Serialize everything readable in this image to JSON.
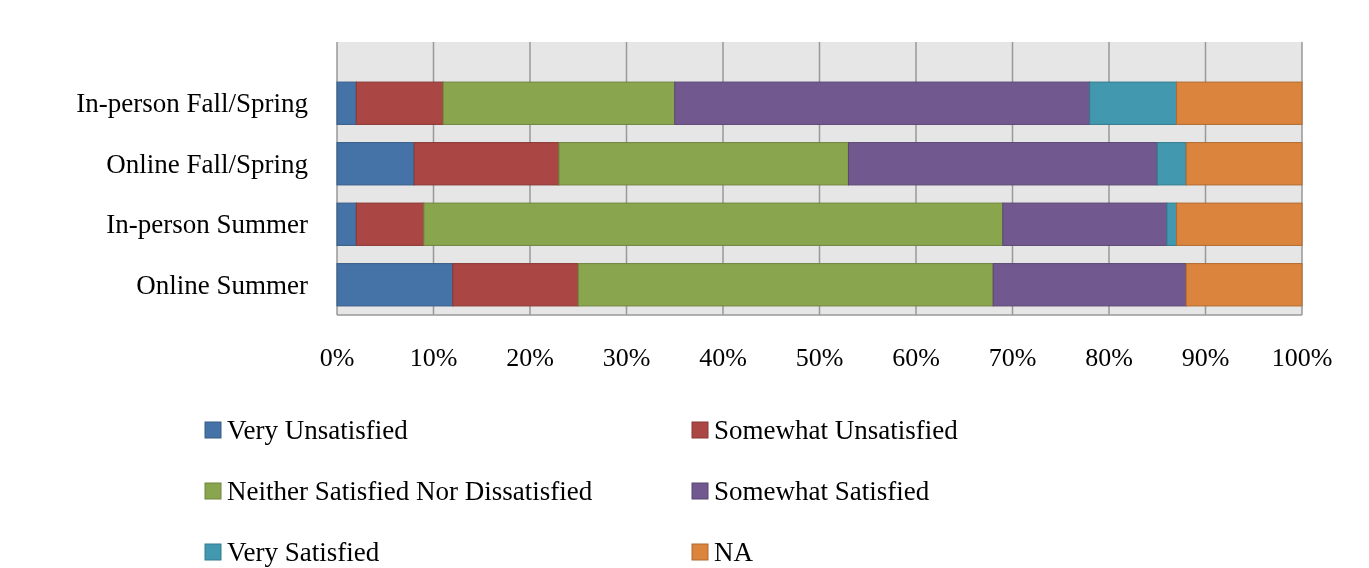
{
  "chart_data": {
    "type": "bar",
    "orientation": "horizontal",
    "stacked": true,
    "categories": [
      "In-person Fall/Spring",
      "Online Fall/Spring",
      "In-person Summer",
      "Online Summer"
    ],
    "series": [
      {
        "name": "Very Unsatisfied",
        "color": "#4572a7",
        "values": [
          2,
          8,
          2,
          12
        ]
      },
      {
        "name": "Somewhat Unsatisfied",
        "color": "#aa4643",
        "values": [
          9,
          15,
          7,
          13
        ]
      },
      {
        "name": "Neither Satisfied Nor Dissatisfied",
        "color": "#89a54e",
        "values": [
          24,
          30,
          60,
          43
        ]
      },
      {
        "name": "Somewhat Satisfied",
        "color": "#71588f",
        "values": [
          43,
          32,
          17,
          20
        ]
      },
      {
        "name": "Very Satisfied",
        "color": "#4198af",
        "values": [
          9,
          3,
          1,
          0
        ]
      },
      {
        "name": "NA",
        "color": "#db843d",
        "values": [
          13,
          12,
          13,
          12
        ]
      }
    ],
    "xlim": [
      0,
      100
    ],
    "xticks": [
      {
        "value": 0,
        "label": "0%"
      },
      {
        "value": 10,
        "label": "10%"
      },
      {
        "value": 20,
        "label": "20%"
      },
      {
        "value": 30,
        "label": "30%"
      },
      {
        "value": 40,
        "label": "40%"
      },
      {
        "value": 50,
        "label": "50%"
      },
      {
        "value": 60,
        "label": "60%"
      },
      {
        "value": 70,
        "label": "70%"
      },
      {
        "value": 80,
        "label": "80%"
      },
      {
        "value": 90,
        "label": "90%"
      },
      {
        "value": 100,
        "label": "100%"
      }
    ],
    "grid": "x",
    "legend": "bottom"
  }
}
